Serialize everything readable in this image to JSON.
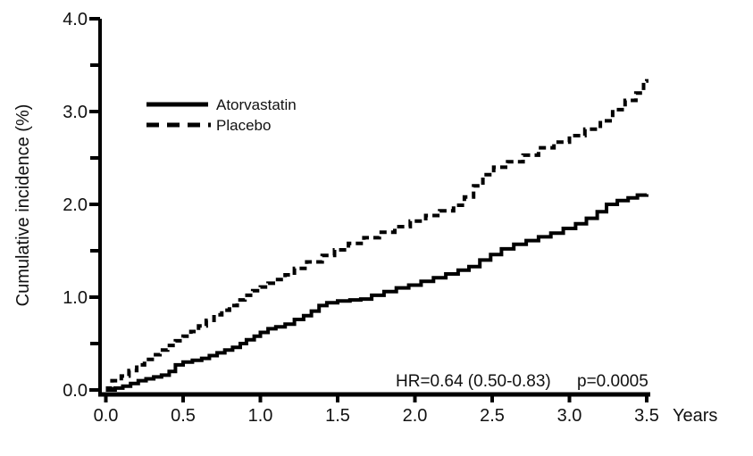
{
  "colors": {
    "line": "#000000",
    "background": "#ffffff",
    "text": "#111111"
  },
  "chart_data": {
    "type": "line",
    "step": true,
    "title": "",
    "xlabel": "Years",
    "ylabel": "Cumulative incidence (%)",
    "xlim": [
      0,
      3.5
    ],
    "ylim": [
      0,
      4.0
    ],
    "grid": false,
    "x_axis": {
      "unit_label": "Years",
      "ticks": [
        {
          "v": 0.0,
          "label": "0.0"
        },
        {
          "v": 0.5,
          "label": "0.5"
        },
        {
          "v": 1.0,
          "label": "1.0"
        },
        {
          "v": 1.5,
          "label": "1.5"
        },
        {
          "v": 2.0,
          "label": "2.0"
        },
        {
          "v": 2.5,
          "label": "2.5"
        },
        {
          "v": 3.0,
          "label": "3.0"
        },
        {
          "v": 3.5,
          "label": "3.5"
        }
      ]
    },
    "y_axis": {
      "label": "Cumulative incidence (%)",
      "ticks": [
        {
          "v": 0.0,
          "label": "0.0"
        },
        {
          "v": 1.0,
          "label": "1.0"
        },
        {
          "v": 2.0,
          "label": "2.0"
        },
        {
          "v": 3.0,
          "label": "3.0"
        },
        {
          "v": 4.0,
          "label": "4.0"
        }
      ],
      "minor_ticks": [
        0.5,
        1.5,
        2.5,
        3.5
      ]
    },
    "legend": {
      "position": "inside-upper-left",
      "entries": [
        {
          "name": "Atorvastatin",
          "style": "solid"
        },
        {
          "name": "Placebo",
          "style": "dashed"
        }
      ]
    },
    "annotation": {
      "hr_text": "HR=0.64 (0.50-0.83)",
      "p_text": "p=0.0005"
    },
    "series": [
      {
        "name": "Atorvastatin",
        "style": "solid",
        "points": [
          [
            0.0,
            0.0
          ],
          [
            0.06,
            0.02
          ],
          [
            0.11,
            0.04
          ],
          [
            0.16,
            0.07
          ],
          [
            0.21,
            0.1
          ],
          [
            0.26,
            0.12
          ],
          [
            0.31,
            0.14
          ],
          [
            0.36,
            0.16
          ],
          [
            0.41,
            0.2
          ],
          [
            0.45,
            0.27
          ],
          [
            0.5,
            0.3
          ],
          [
            0.56,
            0.32
          ],
          [
            0.62,
            0.34
          ],
          [
            0.67,
            0.37
          ],
          [
            0.72,
            0.4
          ],
          [
            0.77,
            0.43
          ],
          [
            0.82,
            0.46
          ],
          [
            0.87,
            0.5
          ],
          [
            0.91,
            0.54
          ],
          [
            0.96,
            0.58
          ],
          [
            1.0,
            0.62
          ],
          [
            1.05,
            0.66
          ],
          [
            1.1,
            0.68
          ],
          [
            1.16,
            0.71
          ],
          [
            1.22,
            0.76
          ],
          [
            1.28,
            0.8
          ],
          [
            1.33,
            0.85
          ],
          [
            1.38,
            0.91
          ],
          [
            1.43,
            0.94
          ],
          [
            1.5,
            0.96
          ],
          [
            1.58,
            0.97
          ],
          [
            1.65,
            0.98
          ],
          [
            1.72,
            1.02
          ],
          [
            1.8,
            1.06
          ],
          [
            1.88,
            1.1
          ],
          [
            1.96,
            1.13
          ],
          [
            2.04,
            1.17
          ],
          [
            2.12,
            1.21
          ],
          [
            2.2,
            1.25
          ],
          [
            2.28,
            1.29
          ],
          [
            2.35,
            1.33
          ],
          [
            2.42,
            1.4
          ],
          [
            2.49,
            1.46
          ],
          [
            2.56,
            1.52
          ],
          [
            2.64,
            1.57
          ],
          [
            2.72,
            1.61
          ],
          [
            2.8,
            1.65
          ],
          [
            2.88,
            1.69
          ],
          [
            2.96,
            1.74
          ],
          [
            3.04,
            1.79
          ],
          [
            3.11,
            1.85
          ],
          [
            3.18,
            1.92
          ],
          [
            3.24,
            2.0
          ],
          [
            3.31,
            2.04
          ],
          [
            3.38,
            2.07
          ],
          [
            3.44,
            2.1
          ],
          [
            3.5,
            2.11
          ]
        ]
      },
      {
        "name": "Placebo",
        "style": "dashed",
        "points": [
          [
            0.0,
            0.02
          ],
          [
            0.04,
            0.1
          ],
          [
            0.1,
            0.15
          ],
          [
            0.15,
            0.21
          ],
          [
            0.2,
            0.27
          ],
          [
            0.25,
            0.33
          ],
          [
            0.3,
            0.38
          ],
          [
            0.35,
            0.43
          ],
          [
            0.4,
            0.48
          ],
          [
            0.45,
            0.53
          ],
          [
            0.5,
            0.58
          ],
          [
            0.55,
            0.63
          ],
          [
            0.6,
            0.69
          ],
          [
            0.65,
            0.75
          ],
          [
            0.7,
            0.81
          ],
          [
            0.75,
            0.86
          ],
          [
            0.8,
            0.91
          ],
          [
            0.85,
            0.97
          ],
          [
            0.9,
            1.02
          ],
          [
            0.95,
            1.07
          ],
          [
            1.0,
            1.11
          ],
          [
            1.05,
            1.15
          ],
          [
            1.1,
            1.19
          ],
          [
            1.16,
            1.24
          ],
          [
            1.22,
            1.31
          ],
          [
            1.3,
            1.38
          ],
          [
            1.4,
            1.45
          ],
          [
            1.48,
            1.51
          ],
          [
            1.57,
            1.58
          ],
          [
            1.67,
            1.64
          ],
          [
            1.77,
            1.7
          ],
          [
            1.87,
            1.76
          ],
          [
            1.97,
            1.82
          ],
          [
            2.07,
            1.88
          ],
          [
            2.16,
            1.93
          ],
          [
            2.25,
            1.99
          ],
          [
            2.32,
            2.08
          ],
          [
            2.38,
            2.2
          ],
          [
            2.44,
            2.32
          ],
          [
            2.51,
            2.4
          ],
          [
            2.6,
            2.46
          ],
          [
            2.7,
            2.53
          ],
          [
            2.8,
            2.61
          ],
          [
            2.9,
            2.67
          ],
          [
            3.0,
            2.74
          ],
          [
            3.1,
            2.81
          ],
          [
            3.2,
            2.9
          ],
          [
            3.28,
            3.02
          ],
          [
            3.36,
            3.12
          ],
          [
            3.43,
            3.2
          ],
          [
            3.48,
            3.33
          ],
          [
            3.5,
            3.35
          ]
        ]
      }
    ]
  }
}
